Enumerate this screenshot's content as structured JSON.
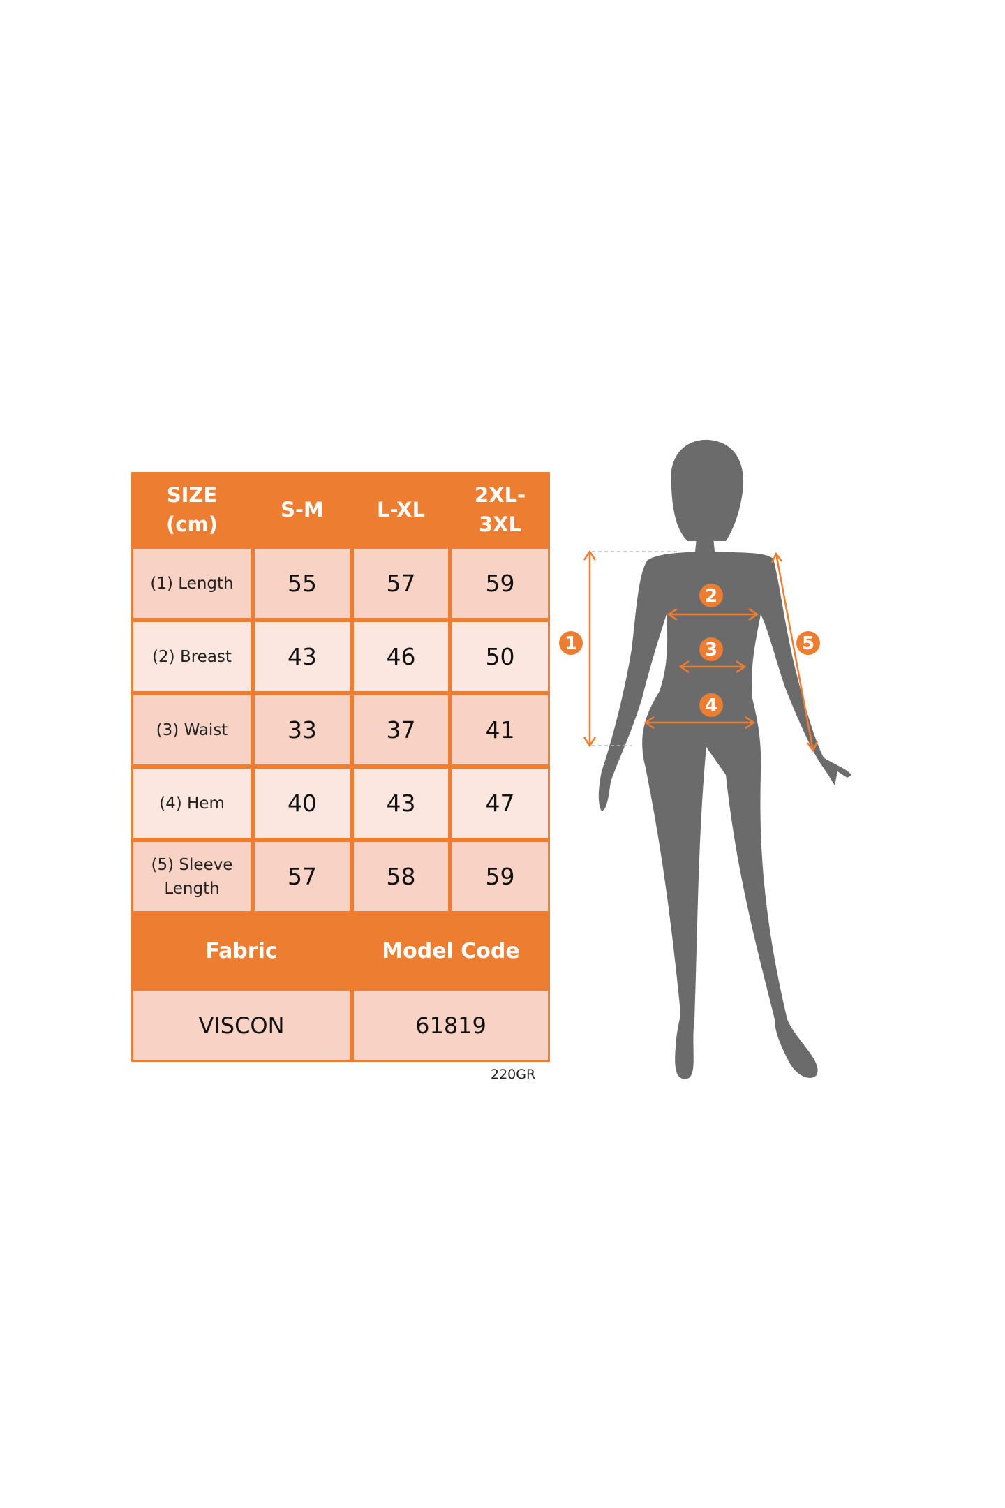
{
  "size_table": {
    "header": [
      "SIZE (cm)",
      "S-M",
      "L-XL",
      "2XL-3XL"
    ],
    "header_lines": [
      [
        "SIZE",
        "(cm)"
      ],
      [
        "S-M"
      ],
      [
        "L-XL"
      ],
      [
        "2XL-",
        "3XL"
      ]
    ],
    "rows": [
      {
        "label_lines": [
          "(1) Length"
        ],
        "values": [
          "55",
          "57",
          "59"
        ]
      },
      {
        "label_lines": [
          "(2) Breast"
        ],
        "values": [
          "43",
          "46",
          "50"
        ]
      },
      {
        "label_lines": [
          "(3) Waist"
        ],
        "values": [
          "33",
          "37",
          "41"
        ]
      },
      {
        "label_lines": [
          "(4) Hem"
        ],
        "values": [
          "40",
          "43",
          "47"
        ]
      },
      {
        "label_lines": [
          "(5) Sleeve",
          "Length"
        ],
        "values": [
          "57",
          "58",
          "59"
        ]
      }
    ],
    "footer_headers": [
      "Fabric",
      "Model Code"
    ],
    "footer_values": [
      "VISCON",
      "61819"
    ]
  },
  "note": "220GR",
  "figure": {
    "markers": [
      "1",
      "2",
      "3",
      "4",
      "5"
    ]
  },
  "colors": {
    "accent": "#ed7d31",
    "row_dark": "#f8d3c5",
    "row_light": "#fbe7df",
    "silhouette": "#6b6b6b"
  }
}
